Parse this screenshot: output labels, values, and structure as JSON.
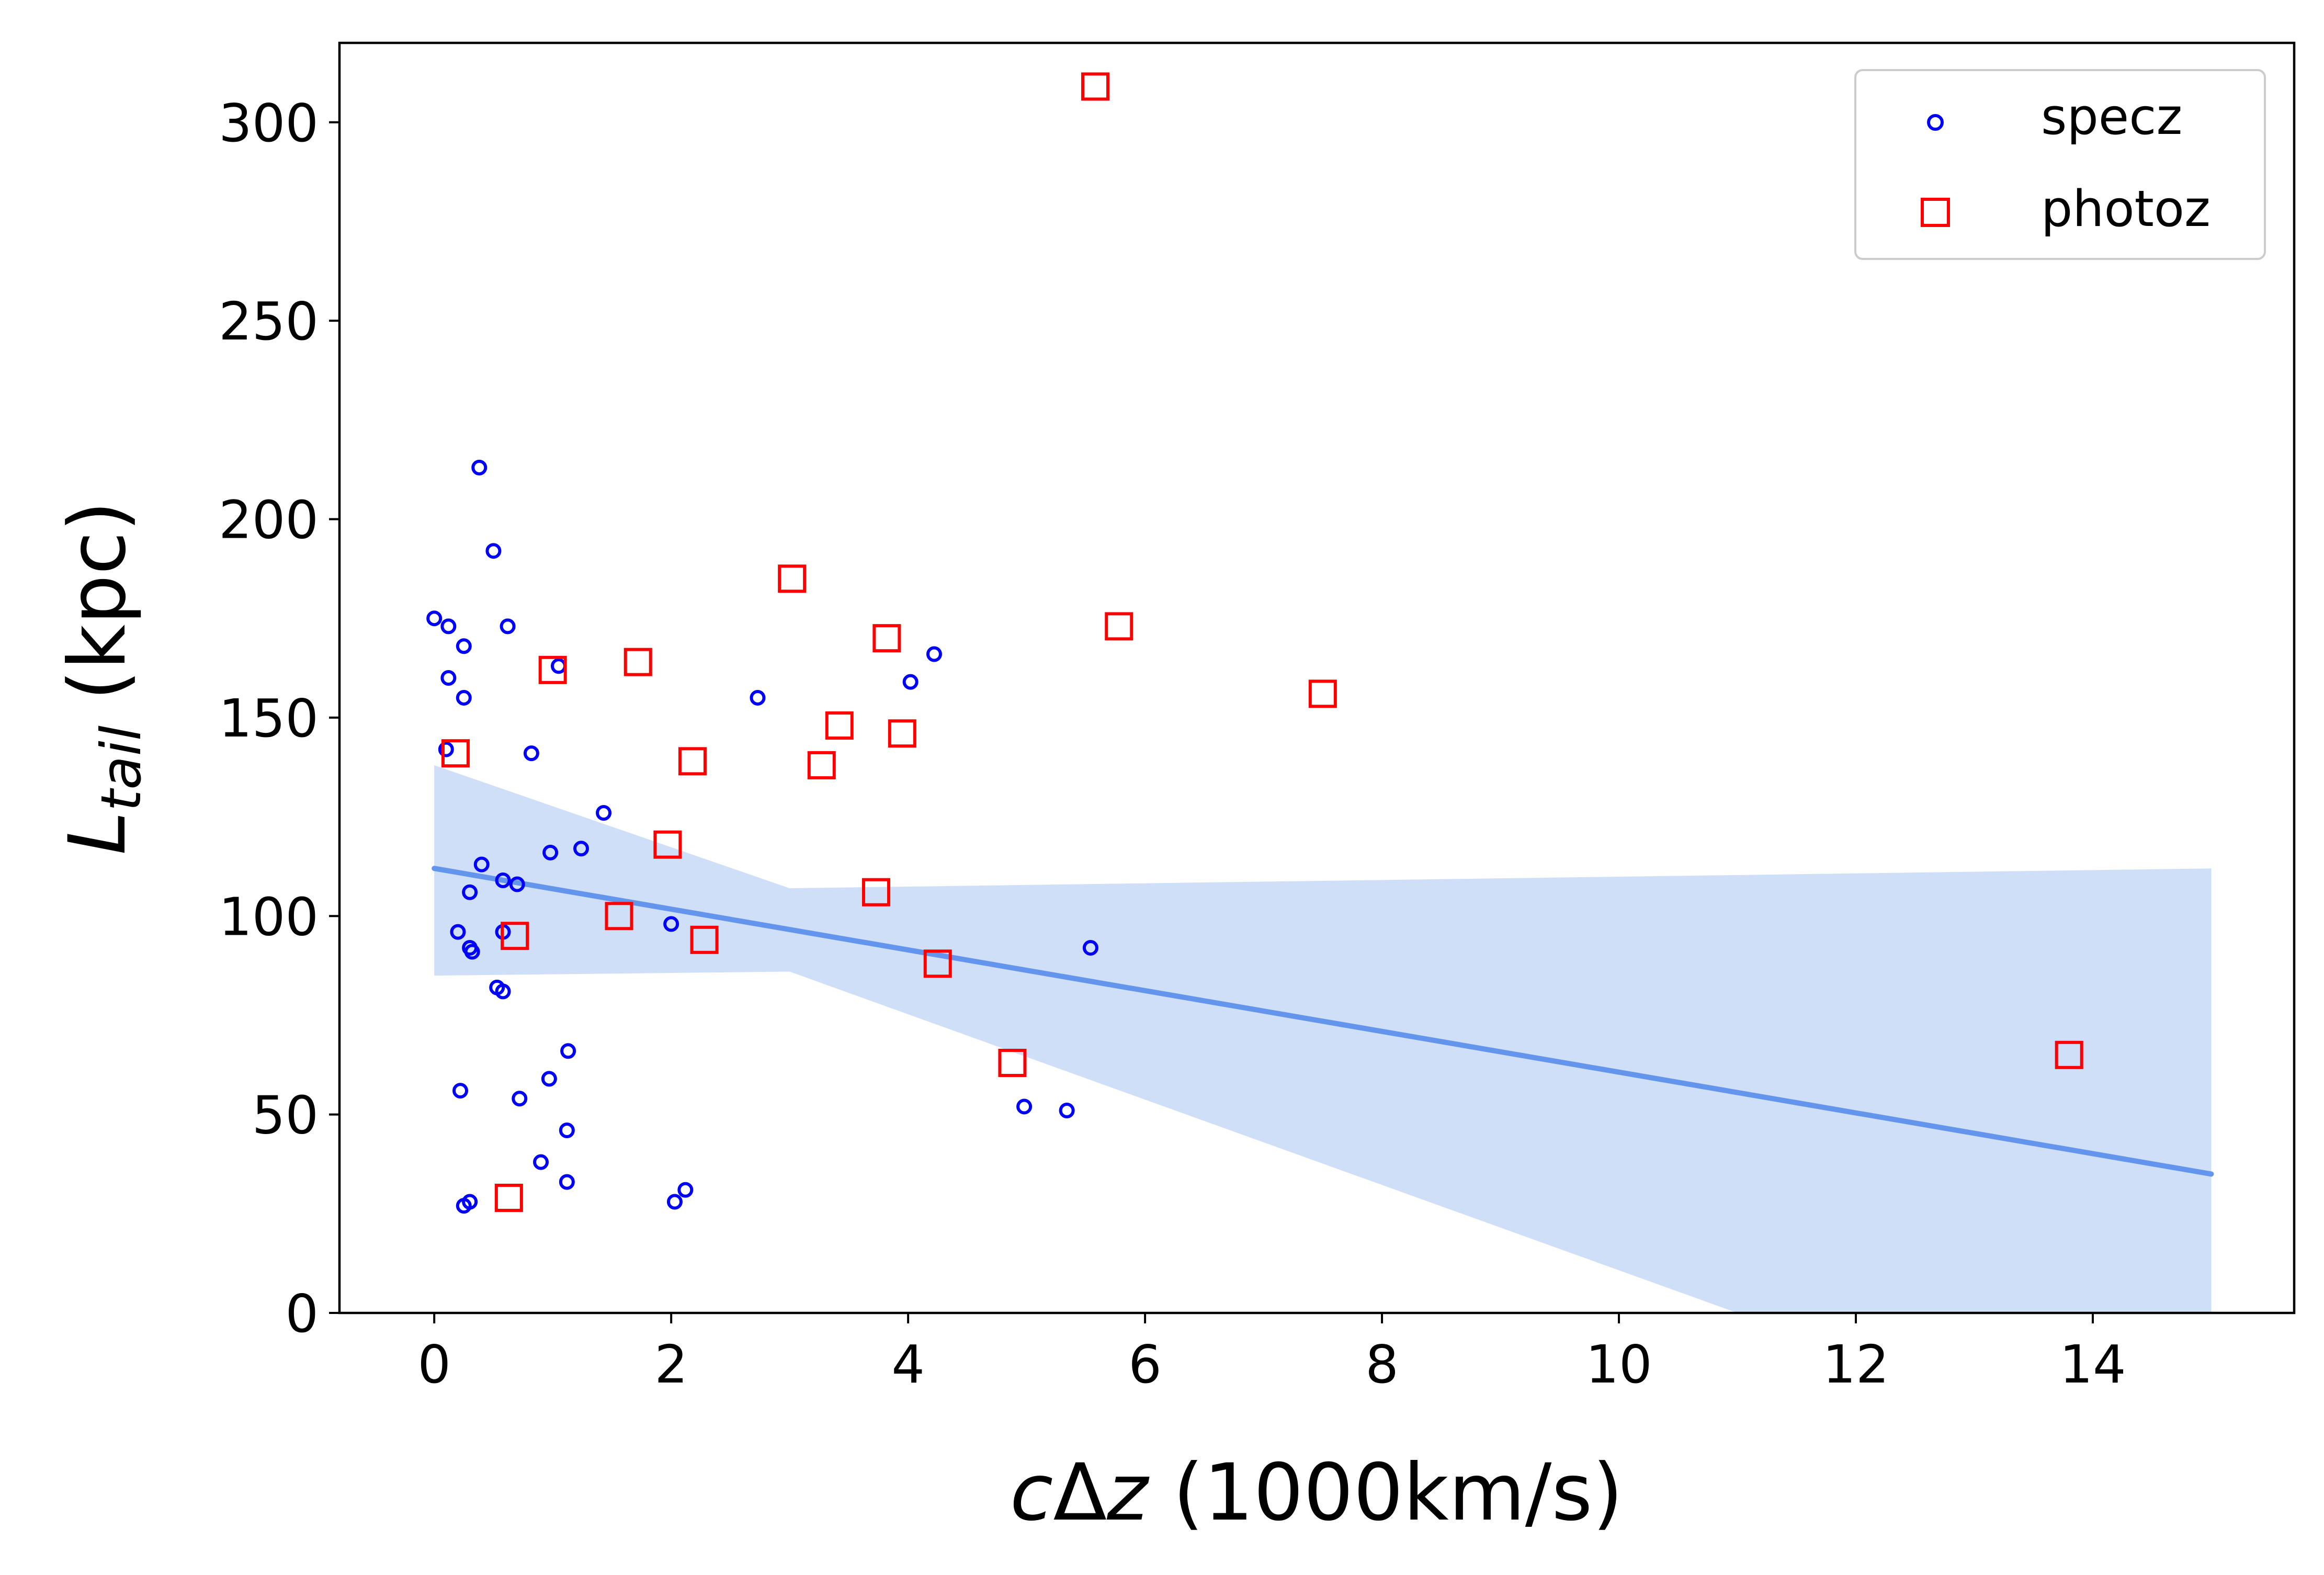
{
  "chart_data": {
    "type": "scatter",
    "title": "",
    "xlabel_parts": [
      "c",
      "Δ",
      "z",
      " (1000km/s)"
    ],
    "ylabel_parts": [
      "L",
      "tail",
      " (kpc)"
    ],
    "xlim": [
      -0.8,
      15.7
    ],
    "ylim": [
      0,
      320
    ],
    "xticks": [
      0,
      2,
      4,
      6,
      8,
      10,
      12,
      14
    ],
    "yticks": [
      0,
      50,
      100,
      150,
      200,
      250,
      300
    ],
    "grid": false,
    "legend_position": "top-right",
    "series": [
      {
        "name": "specz",
        "marker": "circle",
        "color": "#0000ff",
        "points": [
          [
            0.0,
            175
          ],
          [
            0.12,
            173
          ],
          [
            0.38,
            213
          ],
          [
            0.5,
            192
          ],
          [
            0.62,
            173
          ],
          [
            0.25,
            168
          ],
          [
            0.12,
            160
          ],
          [
            0.25,
            155
          ],
          [
            0.1,
            142
          ],
          [
            0.82,
            141
          ],
          [
            1.05,
            163
          ],
          [
            4.22,
            166
          ],
          [
            4.02,
            159
          ],
          [
            2.73,
            155
          ],
          [
            1.43,
            126
          ],
          [
            1.24,
            117
          ],
          [
            0.98,
            116
          ],
          [
            0.4,
            113
          ],
          [
            0.58,
            109
          ],
          [
            0.7,
            108
          ],
          [
            0.3,
            106
          ],
          [
            0.2,
            96
          ],
          [
            0.58,
            96
          ],
          [
            0.3,
            92
          ],
          [
            0.32,
            91
          ],
          [
            2.0,
            98
          ],
          [
            0.53,
            82
          ],
          [
            0.58,
            81
          ],
          [
            5.54,
            92
          ],
          [
            1.13,
            66
          ],
          [
            0.97,
            59
          ],
          [
            0.22,
            56
          ],
          [
            0.72,
            54
          ],
          [
            4.98,
            52
          ],
          [
            5.34,
            51
          ],
          [
            1.12,
            46
          ],
          [
            0.9,
            38
          ],
          [
            1.12,
            33
          ],
          [
            2.12,
            31
          ],
          [
            2.03,
            28
          ],
          [
            0.3,
            28
          ],
          [
            0.25,
            27
          ]
        ]
      },
      {
        "name": "photoz",
        "marker": "square",
        "color": "#ff0000",
        "points": [
          [
            5.58,
            309
          ],
          [
            3.02,
            185
          ],
          [
            5.78,
            173
          ],
          [
            3.82,
            170
          ],
          [
            1.72,
            164
          ],
          [
            1.0,
            162
          ],
          [
            7.5,
            156
          ],
          [
            3.42,
            148
          ],
          [
            3.95,
            146
          ],
          [
            0.18,
            141
          ],
          [
            2.18,
            139
          ],
          [
            3.27,
            138
          ],
          [
            1.97,
            118
          ],
          [
            3.73,
            106
          ],
          [
            1.56,
            100
          ],
          [
            0.68,
            95
          ],
          [
            2.28,
            94
          ],
          [
            4.25,
            88
          ],
          [
            4.88,
            63
          ],
          [
            13.8,
            65
          ],
          [
            0.63,
            29
          ]
        ]
      }
    ],
    "regression": {
      "color": "#6495ed",
      "band_color": "#cfdff8",
      "line": [
        [
          0,
          112
        ],
        [
          15,
          35
        ]
      ],
      "band_upper": [
        [
          0,
          138
        ],
        [
          3.0,
          107
        ],
        [
          15,
          112
        ]
      ],
      "band_lower": [
        [
          0,
          85
        ],
        [
          3.0,
          86
        ],
        [
          11.0,
          0
        ],
        [
          15,
          0
        ]
      ]
    }
  }
}
